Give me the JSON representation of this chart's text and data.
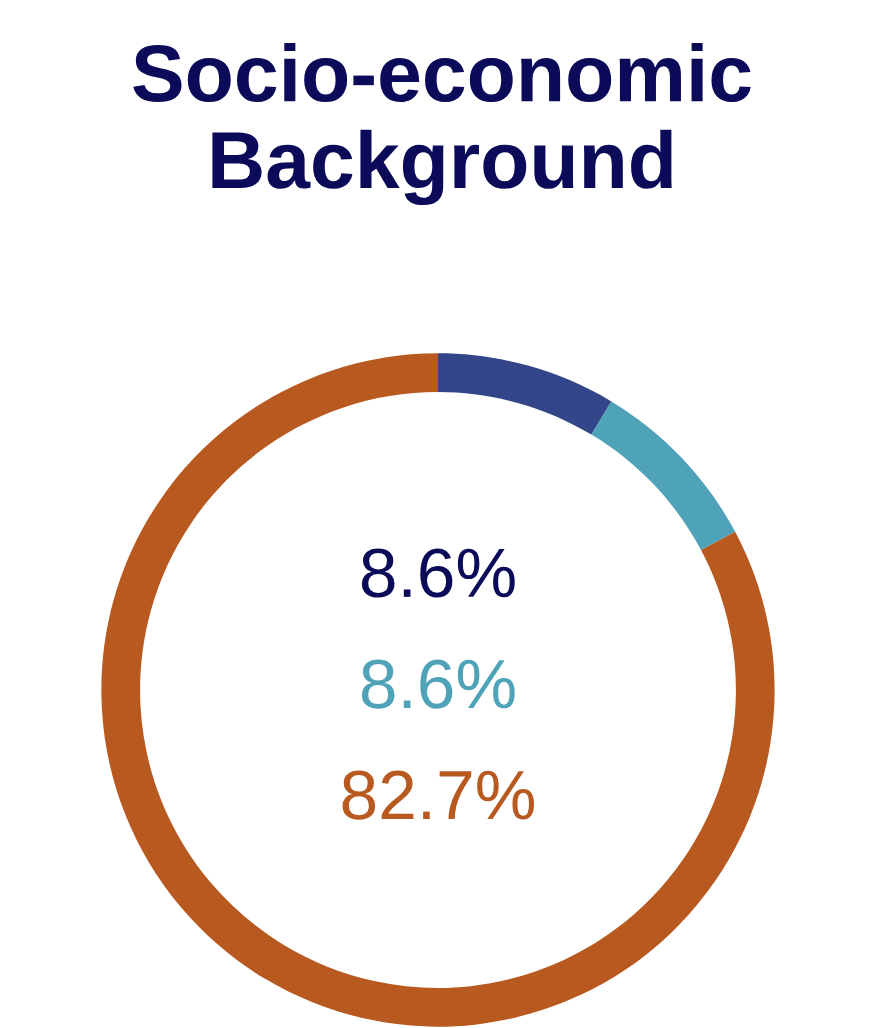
{
  "chart_data": {
    "type": "donut",
    "title": "Socio-economic\nBackground",
    "categories": [
      null,
      null,
      null
    ],
    "values": [
      8.6,
      8.6,
      82.7
    ],
    "colors": [
      "#34468a",
      "#4ea3b8",
      "#b85a20"
    ],
    "annotations": [
      "8.6%",
      "8.6%",
      "82.7%"
    ]
  }
}
